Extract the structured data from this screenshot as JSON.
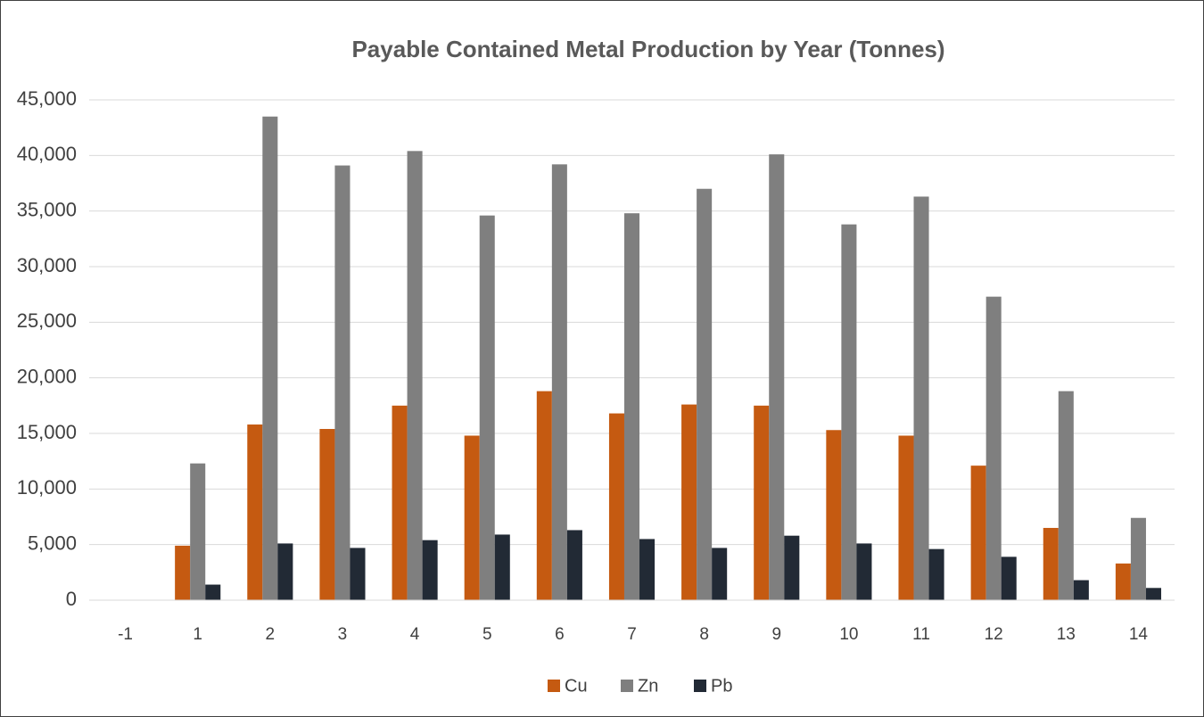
{
  "chart_data": {
    "type": "bar",
    "title": "Payable Contained Metal Production by Year (Tonnes)",
    "categories": [
      "-1",
      "1",
      "2",
      "3",
      "4",
      "5",
      "6",
      "7",
      "8",
      "9",
      "10",
      "11",
      "12",
      "13",
      "14"
    ],
    "series": [
      {
        "name": "Cu",
        "color": "#c55a11",
        "values": [
          0,
          4900,
          15800,
          15400,
          17500,
          14800,
          18800,
          16800,
          17600,
          17500,
          15300,
          14800,
          12100,
          6500,
          3300
        ]
      },
      {
        "name": "Zn",
        "color": "#7f7f7f",
        "values": [
          0,
          12300,
          43500,
          39100,
          40400,
          34600,
          39200,
          34800,
          37000,
          40100,
          33800,
          36300,
          27300,
          18800,
          7400
        ]
      },
      {
        "name": "Pb",
        "color": "#222a35",
        "values": [
          0,
          1400,
          5100,
          4700,
          5400,
          5900,
          6300,
          5500,
          4700,
          5800,
          5100,
          4600,
          3900,
          1800,
          1100
        ]
      }
    ],
    "ylim": [
      0,
      45000
    ],
    "yticks": [
      0,
      {
        "value": 5000,
        "label": "5,000"
      },
      {
        "value": 10000,
        "label": "10,000"
      },
      {
        "value": 15000,
        "label": "15,000"
      },
      {
        "value": 20000,
        "label": "20,000"
      },
      {
        "value": 25000,
        "label": "25,000"
      },
      {
        "value": 30000,
        "label": "30,000"
      },
      {
        "value": 35000,
        "label": "35,000"
      },
      {
        "value": 40000,
        "label": "40,000"
      },
      {
        "value": 45000,
        "label": "45,000"
      }
    ],
    "grid": true,
    "legend": "bottom"
  }
}
